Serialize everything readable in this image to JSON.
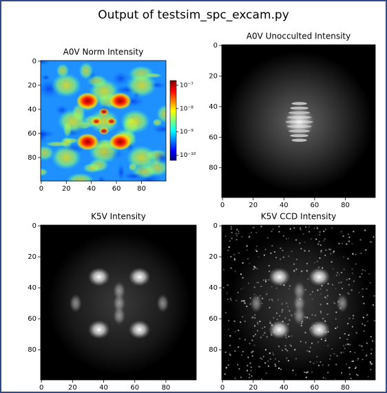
{
  "title": "Output of testsim_spc_excam.py",
  "chart_data": [
    {
      "type": "image",
      "title": "A0V Norm Intensity",
      "colormap": "jet",
      "xlim": [
        -0.5,
        99.5
      ],
      "xticks": [
        0,
        20,
        40,
        60,
        80
      ],
      "ylim": [
        99.5,
        -0.5
      ],
      "yticks": [
        0,
        20,
        40,
        60,
        80
      ],
      "colorbar": {
        "log_scale": true,
        "lim": [
          6e-11,
          1.6e-07
        ],
        "ticks": [
          {
            "value": 1e-07,
            "label": "10⁻⁷"
          },
          {
            "value": 1e-08,
            "label": "10⁻⁸"
          },
          {
            "value": 1e-09,
            "label": "10⁻⁹"
          },
          {
            "value": 1e-10,
            "label": "10⁻¹⁰"
          }
        ]
      }
    },
    {
      "type": "image",
      "title": "A0V Unocculted Intensity",
      "colormap": "gray",
      "xlim": [
        -0.5,
        99.5
      ],
      "xticks": [
        0,
        20,
        40,
        60,
        80
      ],
      "ylim": [
        99.5,
        -0.5
      ],
      "yticks": [
        0,
        20,
        40,
        60,
        80
      ]
    },
    {
      "type": "image",
      "title": "K5V Intensity",
      "colormap": "gray",
      "xlim": [
        -0.5,
        99.5
      ],
      "xticks": [
        0,
        20,
        40,
        60,
        80
      ],
      "ylim": [
        99.5,
        -0.5
      ],
      "yticks": [
        0,
        20,
        40,
        60,
        80
      ]
    },
    {
      "type": "image",
      "title": "K5V CCD Intensity",
      "colormap": "gray",
      "xlim": [
        -0.5,
        99.5
      ],
      "xticks": [
        0,
        20,
        40,
        60,
        80
      ],
      "ylim": [
        99.5,
        -0.5
      ],
      "yticks": [
        0,
        20,
        40,
        60,
        80
      ]
    }
  ]
}
